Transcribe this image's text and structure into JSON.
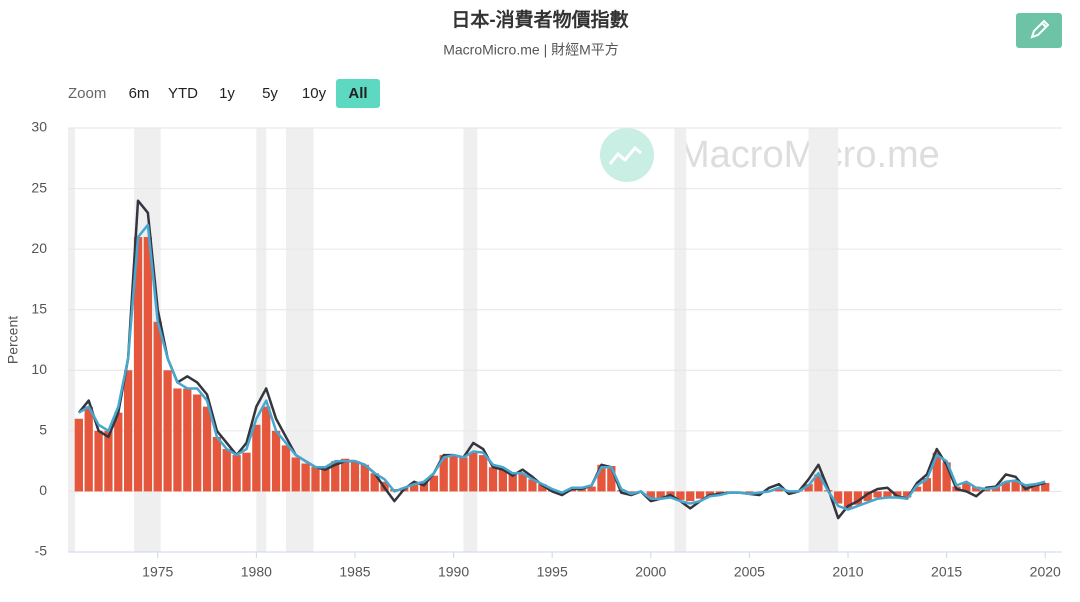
{
  "chart_data": {
    "type": "combo",
    "title": "日本-消費者物價指數",
    "subtitle": "MacroMicro.me | 財經M平方",
    "watermark": "MacroMicro.me",
    "zoom": {
      "label": "Zoom",
      "buttons": [
        "6m",
        "YTD",
        "1y",
        "5y",
        "10y",
        "All"
      ],
      "active": 5
    },
    "y_label": "Percent",
    "xlim": [
      1970.45,
      2020.85
    ],
    "xticks": [
      1975,
      1980,
      1985,
      1990,
      1995,
      2000,
      2005,
      2010,
      2015,
      2020
    ],
    "ylim": [
      -5,
      30
    ],
    "yticks": [
      -5,
      0,
      5,
      10,
      15,
      20,
      25,
      30
    ],
    "grid": true,
    "recessions": [
      [
        1970.45,
        1970.8
      ],
      [
        1973.8,
        1975.15
      ],
      [
        1980.0,
        1980.5
      ],
      [
        1981.5,
        1982.9
      ],
      [
        1990.5,
        1991.2
      ],
      [
        2001.2,
        2001.8
      ],
      [
        2008.0,
        2009.5
      ]
    ],
    "recession_color": "#efefef",
    "x": [
      1971,
      1971.5,
      1972,
      1972.5,
      1973,
      1973.5,
      1974,
      1974.5,
      1975,
      1975.5,
      1976,
      1976.5,
      1977,
      1977.5,
      1978,
      1978.5,
      1979,
      1979.5,
      1980,
      1980.5,
      1981,
      1981.5,
      1982,
      1982.5,
      1983,
      1983.5,
      1984,
      1984.5,
      1985,
      1985.5,
      1986,
      1986.5,
      1987,
      1987.5,
      1988,
      1988.5,
      1989,
      1989.5,
      1990,
      1990.5,
      1991,
      1991.5,
      1992,
      1992.5,
      1993,
      1993.5,
      1994,
      1994.5,
      1995,
      1995.5,
      1996,
      1996.5,
      1997,
      1997.5,
      1998,
      1998.5,
      1999,
      1999.5,
      2000,
      2000.5,
      2001,
      2001.5,
      2002,
      2002.5,
      2003,
      2003.5,
      2004,
      2004.5,
      2005,
      2005.5,
      2006,
      2006.5,
      2007,
      2007.5,
      2008,
      2008.5,
      2009,
      2009.5,
      2010,
      2010.5,
      2011,
      2011.5,
      2012,
      2012.5,
      2013,
      2013.5,
      2014,
      2014.5,
      2015,
      2015.5,
      2016,
      2016.5,
      2017,
      2017.5,
      2018,
      2018.5,
      2019,
      2019.5,
      2020
    ],
    "series": [
      {
        "type": "bar",
        "color": "#e5573d",
        "values": [
          6,
          7,
          5,
          5,
          6.5,
          10,
          21,
          21,
          14,
          10,
          8.5,
          8.5,
          8,
          7,
          4.5,
          3.5,
          3,
          3.2,
          5.5,
          7,
          5,
          3.8,
          2.8,
          2.3,
          2,
          2,
          2.5,
          2.7,
          2.5,
          2.2,
          1.5,
          0.8,
          0.2,
          0.3,
          0.6,
          0.8,
          1.3,
          3,
          3,
          2.8,
          3.2,
          3,
          2,
          1.9,
          1.4,
          1.4,
          1,
          0.6,
          0.1,
          -0.1,
          0.2,
          0.3,
          0.4,
          2.2,
          2.1,
          0.1,
          -0.2,
          0,
          -0.5,
          -0.5,
          -0.4,
          -0.7,
          -0.8,
          -0.6,
          -0.4,
          -0.2,
          -0.1,
          0,
          -0.1,
          0,
          0.1,
          0.2,
          0,
          0.1,
          0.6,
          1.4,
          0.1,
          -1,
          -1.4,
          -1.1,
          -0.8,
          -0.5,
          -0.5,
          -0.4,
          -0.5,
          0.4,
          1.1,
          3.2,
          2.4,
          0.4,
          0.7,
          0.4,
          0.3,
          0.4,
          0.8,
          0.9,
          0.5,
          0.6,
          0.7
        ]
      },
      {
        "type": "line",
        "color": "#35353f",
        "values": [
          6.5,
          7.5,
          5,
          4.5,
          6.5,
          11,
          24,
          23,
          15,
          11,
          9,
          9.5,
          9,
          8,
          5,
          4,
          3,
          4,
          7,
          8.5,
          6,
          4.5,
          3,
          2.5,
          2,
          1.8,
          2.2,
          2.5,
          2.5,
          2.2,
          1.5,
          0.3,
          -0.8,
          0.2,
          0.8,
          0.5,
          1.5,
          3,
          3,
          2.8,
          4,
          3.5,
          2,
          1.8,
          1.3,
          1.8,
          1.2,
          0.5,
          0,
          -0.3,
          0.2,
          0.2,
          0.5,
          2.2,
          2,
          -0.1,
          -0.3,
          0,
          -0.8,
          -0.6,
          -0.3,
          -0.8,
          -1.4,
          -0.8,
          -0.3,
          -0.2,
          -0.1,
          -0.1,
          -0.2,
          -0.3,
          0.3,
          0.6,
          -0.2,
          0,
          1,
          2.2,
          0.2,
          -2.2,
          -1.2,
          -0.8,
          -0.2,
          0.2,
          0.3,
          -0.4,
          -0.6,
          0.7,
          1.4,
          3.5,
          2.2,
          0.2,
          0,
          -0.4,
          0.3,
          0.4,
          1.4,
          1.2,
          0.2,
          0.5,
          0.7
        ]
      },
      {
        "type": "line",
        "color": "#47a7cf",
        "values": [
          6.5,
          7,
          5.5,
          5,
          7,
          11,
          21,
          22,
          14,
          11,
          9,
          8.5,
          8.5,
          7.5,
          4.5,
          3.5,
          3,
          3.5,
          6,
          7.5,
          5,
          4,
          3,
          2.5,
          2,
          2,
          2.5,
          2.5,
          2.5,
          2.2,
          1.5,
          1,
          0,
          0.3,
          0.6,
          0.8,
          1.5,
          2.8,
          3,
          2.8,
          3.3,
          3.2,
          2.2,
          2,
          1.5,
          1.5,
          1,
          0.6,
          0.2,
          -0.1,
          0.3,
          0.3,
          0.5,
          2,
          2,
          0.2,
          -0.2,
          0,
          -0.6,
          -0.6,
          -0.5,
          -0.8,
          -1,
          -0.8,
          -0.4,
          -0.3,
          -0.1,
          -0.1,
          -0.2,
          -0.1,
          0,
          0.3,
          0,
          0,
          0.5,
          1.5,
          0,
          -1.2,
          -1.5,
          -1.2,
          -0.9,
          -0.6,
          -0.5,
          -0.5,
          -0.6,
          0.5,
          1,
          3,
          2.5,
          0.5,
          0.8,
          0.3,
          0.2,
          0.3,
          0.8,
          0.9,
          0.5,
          0.6,
          0.8
        ]
      }
    ]
  }
}
